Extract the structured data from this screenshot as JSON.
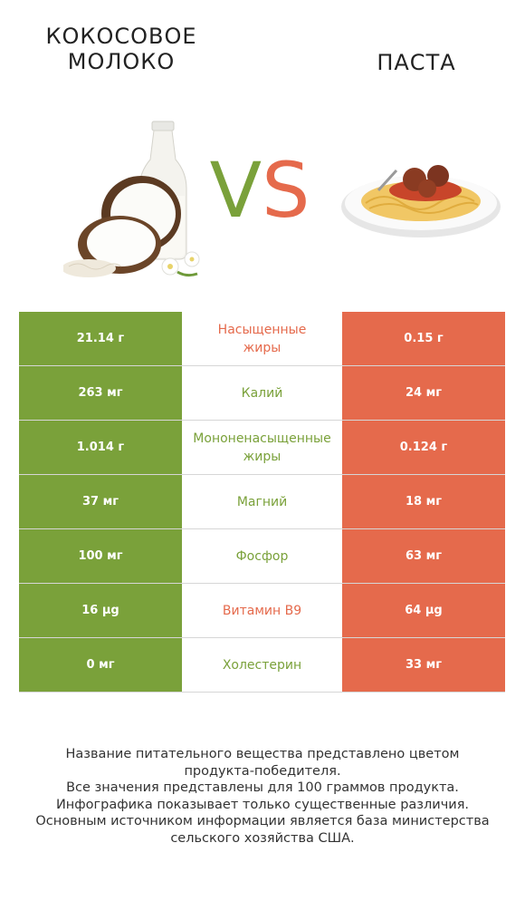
{
  "left": {
    "title_line1": "КОКОСОВОЕ",
    "title_line2": "МОЛОКО",
    "color": "#7aa13a"
  },
  "right": {
    "title": "ПАСТА",
    "color": "#e56a4c"
  },
  "vs": {
    "v": "V",
    "s": "S"
  },
  "rows": [
    {
      "left": "21.14 г",
      "label": "Насыщенные\nжиры",
      "right": "0.15 г",
      "winner": "right"
    },
    {
      "left": "263 мг",
      "label": "Калий",
      "right": "24 мг",
      "winner": "left"
    },
    {
      "left": "1.014 г",
      "label": "Мононенасыщенные\nжиры",
      "right": "0.124 г",
      "winner": "left"
    },
    {
      "left": "37 мг",
      "label": "Магний",
      "right": "18 мг",
      "winner": "left"
    },
    {
      "left": "100 мг",
      "label": "Фосфор",
      "right": "63 мг",
      "winner": "left"
    },
    {
      "left": "16 µg",
      "label": "Витамин B9",
      "right": "64 µg",
      "winner": "right"
    },
    {
      "left": "0 мг",
      "label": "Холестерин",
      "right": "33 мг",
      "winner": "left"
    }
  ],
  "footer": {
    "line1": "Название питательного вещества представлено цветом",
    "line2": "продукта-победителя.",
    "line3": "Все значения представлены для 100 граммов продукта.",
    "line4": "Инфографика показывает только существенные различия.",
    "line5": "Основным источником информации является база министерства",
    "line6": "сельского хозяйства США."
  }
}
